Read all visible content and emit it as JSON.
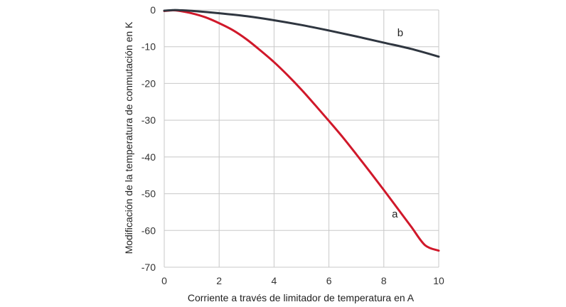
{
  "chart_data": {
    "type": "line",
    "title": "",
    "xlabel": "Corriente a través de limitador de temperatura en A",
    "ylabel": "Modificación de la temperatura de conmutación en K",
    "xlim": [
      0,
      10
    ],
    "ylim": [
      -70,
      0
    ],
    "x_ticks": [
      0,
      2,
      4,
      6,
      8,
      10
    ],
    "y_ticks": [
      0,
      -10,
      -20,
      -30,
      -40,
      -50,
      -60,
      -70
    ],
    "x_tick_labels": [
      "0",
      "2",
      "4",
      "6",
      "8",
      "10"
    ],
    "y_tick_labels": [
      "0",
      "-10",
      "-20",
      "-30",
      "-40",
      "-50",
      "-60",
      "-70"
    ],
    "grid": true,
    "legend": "none",
    "series": [
      {
        "name": "a",
        "color": "#d0182a",
        "x": [
          0,
          0.3,
          0.5,
          1,
          1.5,
          2,
          2.5,
          3,
          3.5,
          4,
          4.5,
          5,
          5.5,
          6,
          6.5,
          7,
          7.5,
          8,
          8.5,
          9,
          9.5,
          10
        ],
        "y": [
          -0.3,
          -0.1,
          -0.2,
          -0.9,
          -2.0,
          -3.6,
          -5.5,
          -8.0,
          -11.0,
          -14.2,
          -17.8,
          -21.7,
          -25.9,
          -30.2,
          -34.6,
          -39.3,
          -44.1,
          -49.0,
          -54.0,
          -59.0,
          -64.0,
          -65.5
        ]
      },
      {
        "name": "b",
        "color": "#2f3640",
        "x": [
          0,
          0.3,
          0.5,
          1,
          2,
          3,
          4,
          5,
          6,
          7,
          8,
          9,
          10
        ],
        "y": [
          -0.2,
          -0.05,
          -0.05,
          -0.25,
          -0.9,
          -1.7,
          -2.8,
          -4.1,
          -5.6,
          -7.2,
          -8.9,
          -10.6,
          -12.7
        ]
      }
    ]
  }
}
